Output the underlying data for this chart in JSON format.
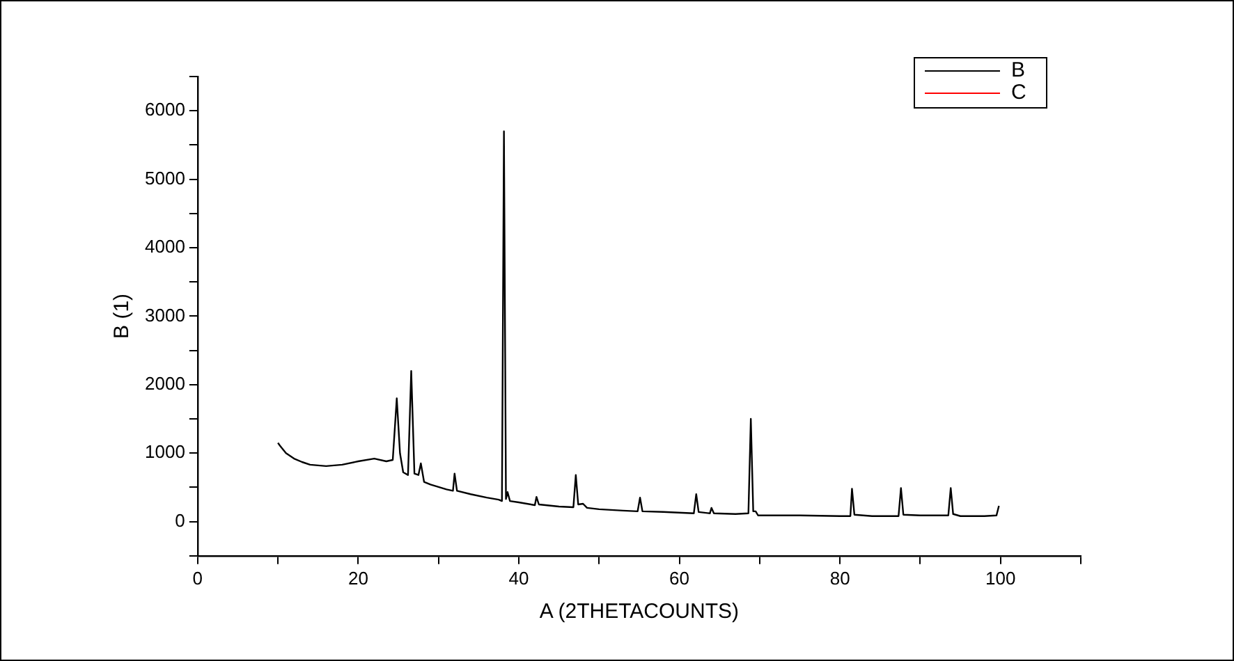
{
  "chart_data": {
    "type": "line",
    "xlabel": "A (2THETACOUNTS)",
    "ylabel": "B (1)",
    "x": [
      10,
      10.3,
      11,
      12,
      13,
      14,
      16,
      18,
      20,
      22,
      23.5,
      24.3,
      24.8,
      25.2,
      25.6,
      26.2,
      26.6,
      27,
      27.5,
      27.8,
      28.2,
      29,
      31,
      31.8,
      32,
      32.3,
      34,
      36,
      37.5,
      37.9,
      38.15,
      38.4,
      38.6,
      38.9,
      40,
      42,
      42.2,
      42.5,
      45,
      46.8,
      47.1,
      47.4,
      48,
      48.5,
      50,
      53,
      54.8,
      55.1,
      55.4,
      58,
      61.8,
      62.1,
      62.4,
      63.8,
      64,
      64.3,
      67,
      68.6,
      68.9,
      69.2,
      69.5,
      69.8,
      72,
      75,
      80,
      81.3,
      81.5,
      81.8,
      84,
      87.3,
      87.6,
      87.9,
      90,
      93.5,
      93.8,
      94.1,
      95,
      98,
      99.5,
      99.8
    ],
    "series": [
      {
        "name": "B",
        "color": "#000000",
        "values": [
          1150,
          1100,
          1000,
          920,
          870,
          830,
          810,
          830,
          880,
          920,
          880,
          900,
          1800,
          1000,
          720,
          680,
          2200,
          700,
          680,
          850,
          580,
          540,
          470,
          450,
          700,
          450,
          400,
          350,
          320,
          300,
          5700,
          330,
          430,
          300,
          280,
          240,
          360,
          250,
          220,
          210,
          680,
          250,
          260,
          200,
          180,
          160,
          150,
          350,
          150,
          140,
          120,
          400,
          140,
          120,
          200,
          120,
          110,
          120,
          1500,
          150,
          150,
          90,
          90,
          90,
          80,
          80,
          480,
          100,
          80,
          80,
          490,
          100,
          90,
          90,
          490,
          110,
          80,
          80,
          90,
          230
        ]
      },
      {
        "name": "C",
        "color": "#ff0000",
        "values": [
          null,
          null,
          null,
          null,
          null,
          null,
          null,
          null,
          null,
          null,
          null,
          null,
          null,
          null,
          null,
          null,
          null,
          null,
          null,
          null,
          null,
          null,
          null,
          null,
          null,
          null,
          null,
          null,
          null,
          null,
          null,
          null,
          null,
          null,
          null,
          null,
          null,
          null,
          null,
          null,
          null,
          null,
          null,
          null,
          null,
          null,
          null,
          null,
          null,
          null,
          null,
          null,
          null,
          null,
          null,
          null,
          null,
          null,
          null,
          null,
          null,
          null,
          null,
          null,
          null,
          null,
          null,
          null,
          null,
          null,
          null,
          null,
          null,
          null,
          null,
          null,
          null,
          null,
          null,
          null
        ]
      }
    ],
    "xlim": [
      0,
      110
    ],
    "xticks": [
      0,
      {
        "value": 10,
        "label": null
      },
      20,
      {
        "value": 30,
        "label": null
      },
      40,
      {
        "value": 50,
        "label": null
      },
      60,
      {
        "value": 70,
        "label": null
      },
      80,
      {
        "value": 90,
        "label": null
      },
      100,
      {
        "value": 110,
        "label": null
      }
    ],
    "ylim": [
      -500,
      6500
    ],
    "yticks": [
      {
        "value": -500,
        "label": null
      },
      0,
      {
        "value": 500,
        "label": null
      },
      1000,
      {
        "value": 1500,
        "label": null
      },
      2000,
      {
        "value": 2500,
        "label": null
      },
      3000,
      {
        "value": 3500,
        "label": null
      },
      4000,
      {
        "value": 4500,
        "label": null
      },
      5000,
      {
        "value": 5500,
        "label": null
      },
      6000,
      {
        "value": 6500,
        "label": null
      }
    ],
    "grid": false,
    "legend": "top right",
    "marker": "none",
    "line_style": "solid"
  }
}
